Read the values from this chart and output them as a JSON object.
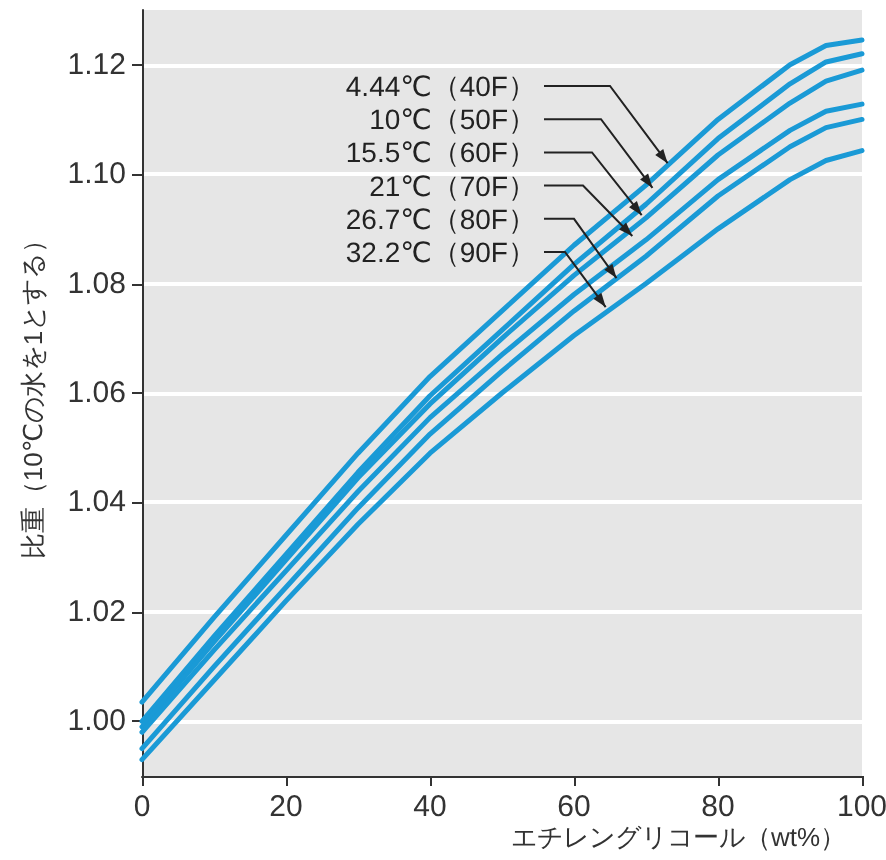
{
  "chart_data": {
    "type": "line",
    "xlabel": "エチレングリコール（wt%）",
    "ylabel": "比重（10℃の水を1とする）",
    "x": [
      0,
      10,
      20,
      30,
      40,
      50,
      60,
      70,
      80,
      90,
      95,
      100
    ],
    "series": [
      {
        "color": "#1a9ad6",
        "values": [
          1.0035,
          1.019,
          1.034,
          1.049,
          1.063,
          1.075,
          1.087,
          1.098,
          1.11,
          1.12,
          1.1235,
          1.1245
        ]
      },
      {
        "color": "#1a9ad6",
        "values": [
          1.0,
          1.0155,
          1.0305,
          1.0455,
          1.0595,
          1.0715,
          1.0835,
          1.0945,
          1.1065,
          1.1165,
          1.1205,
          1.122
        ]
      },
      {
        "color": "#1a9ad6",
        "values": [
          0.999,
          1.0145,
          1.0295,
          1.0445,
          1.058,
          1.07,
          1.0815,
          1.092,
          1.1035,
          1.113,
          1.117,
          1.119
        ]
      },
      {
        "color": "#1a9ad6",
        "values": [
          0.998,
          1.013,
          1.0275,
          1.042,
          1.0555,
          1.067,
          1.078,
          1.088,
          1.099,
          1.108,
          1.1115,
          1.1128
        ]
      },
      {
        "color": "#1a9ad6",
        "values": [
          0.995,
          1.01,
          1.0245,
          1.039,
          1.0525,
          1.064,
          1.075,
          1.085,
          1.096,
          1.105,
          1.1085,
          1.11
        ]
      },
      {
        "color": "#1a9ad6",
        "values": [
          0.993,
          1.0075,
          1.022,
          1.036,
          1.049,
          1.06,
          1.0705,
          1.08,
          1.09,
          1.099,
          1.1025,
          1.1043
        ]
      }
    ],
    "annotations": [
      {
        "text": "4.44℃（40F）",
        "x": 73,
        "y": 1.102
      },
      {
        "text": "10℃（50F）",
        "x": 70.9,
        "y": 1.0975
      },
      {
        "text": "15.5℃（60F）",
        "x": 69.4,
        "y": 1.0925
      },
      {
        "text": "21℃（70F）",
        "x": 68.1,
        "y": 1.0887
      },
      {
        "text": "26.7℃（80F）",
        "x": 65.9,
        "y": 1.081
      },
      {
        "text": "32.2℃（90F）",
        "x": 64.4,
        "y": 1.0757
      }
    ],
    "xlim": [
      0,
      100
    ],
    "xticks": [
      0,
      20,
      40,
      60,
      80,
      100
    ],
    "ylim": [
      0.99,
      1.13
    ],
    "yticks": [
      {
        "value": 1,
        "label": "1.00"
      },
      1.02,
      1.04,
      1.06,
      1.08,
      {
        "value": 1.1,
        "label": "1.10"
      },
      1.12
    ],
    "grid": "y",
    "marker": "none",
    "line_style": "solid"
  }
}
